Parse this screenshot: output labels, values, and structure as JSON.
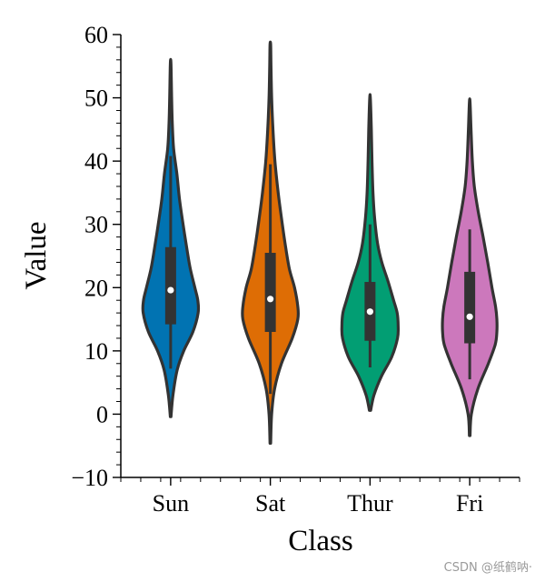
{
  "chart_data": {
    "type": "violin",
    "title": "",
    "xlabel": "Class",
    "ylabel": "Value",
    "ylim": [
      -10,
      60
    ],
    "yticks": [
      -10,
      0,
      10,
      20,
      30,
      40,
      50,
      60
    ],
    "ytick_labels": [
      "−10",
      "0",
      "10",
      "20",
      "30",
      "40",
      "50",
      "60"
    ],
    "categories": [
      "Sun",
      "Sat",
      "Thur",
      "Fri"
    ],
    "series": [
      {
        "name": "Sun",
        "color": "#0173b2",
        "median": 19.6,
        "q1": 14.2,
        "q3": 26.4,
        "whisker_low": 7.2,
        "whisker_high": 40.8,
        "kde_min": -0.4,
        "kde_max": 55.4,
        "density": [
          [
            -0.4,
            0.01
          ],
          [
            3,
            0.07
          ],
          [
            7,
            0.2
          ],
          [
            10,
            0.4
          ],
          [
            13,
            0.68
          ],
          [
            16,
            0.84
          ],
          [
            18,
            0.83
          ],
          [
            20,
            0.74
          ],
          [
            23,
            0.6
          ],
          [
            26,
            0.5
          ],
          [
            30,
            0.38
          ],
          [
            34,
            0.27
          ],
          [
            38,
            0.19
          ],
          [
            42,
            0.09
          ],
          [
            46,
            0.05
          ],
          [
            50,
            0.03
          ],
          [
            55.4,
            0.01
          ]
        ]
      },
      {
        "name": "Sat",
        "color": "#de6d05",
        "median": 18.2,
        "q1": 13.0,
        "q3": 25.5,
        "whisker_low": 3.2,
        "whisker_high": 39.5,
        "kde_min": -4.6,
        "kde_max": 58.4,
        "density": [
          [
            -4.6,
            0.01
          ],
          [
            0,
            0.04
          ],
          [
            4,
            0.13
          ],
          [
            8,
            0.34
          ],
          [
            12,
            0.67
          ],
          [
            15,
            0.84
          ],
          [
            17,
            0.84
          ],
          [
            20,
            0.74
          ],
          [
            23,
            0.58
          ],
          [
            27,
            0.45
          ],
          [
            31,
            0.34
          ],
          [
            35,
            0.24
          ],
          [
            40,
            0.14
          ],
          [
            45,
            0.08
          ],
          [
            50,
            0.04
          ],
          [
            55,
            0.02
          ],
          [
            58.4,
            0.01
          ]
        ]
      },
      {
        "name": "Thur",
        "color": "#029e73",
        "median": 16.2,
        "q1": 11.6,
        "q3": 20.9,
        "whisker_low": 7.4,
        "whisker_high": 30.0,
        "kde_min": 0.6,
        "kde_max": 49.9,
        "density": [
          [
            0.6,
            0.02
          ],
          [
            3,
            0.12
          ],
          [
            6,
            0.35
          ],
          [
            9,
            0.66
          ],
          [
            12,
            0.84
          ],
          [
            14,
            0.86
          ],
          [
            16,
            0.83
          ],
          [
            18,
            0.72
          ],
          [
            21,
            0.55
          ],
          [
            24,
            0.36
          ],
          [
            27,
            0.23
          ],
          [
            31,
            0.14
          ],
          [
            35,
            0.09
          ],
          [
            40,
            0.06
          ],
          [
            45,
            0.04
          ],
          [
            49.9,
            0.01
          ]
        ]
      },
      {
        "name": "Fri",
        "color": "#cc78bc",
        "median": 15.4,
        "q1": 11.2,
        "q3": 22.5,
        "whisker_low": 5.5,
        "whisker_high": 29.2,
        "kde_min": -3.4,
        "kde_max": 49.3,
        "density": [
          [
            -3.4,
            0.01
          ],
          [
            0,
            0.05
          ],
          [
            4,
            0.25
          ],
          [
            8,
            0.57
          ],
          [
            11,
            0.78
          ],
          [
            13,
            0.83
          ],
          [
            15,
            0.83
          ],
          [
            17,
            0.79
          ],
          [
            20,
            0.68
          ],
          [
            24,
            0.55
          ],
          [
            28,
            0.41
          ],
          [
            32,
            0.26
          ],
          [
            36,
            0.14
          ],
          [
            40,
            0.08
          ],
          [
            45,
            0.04
          ],
          [
            49.3,
            0.01
          ]
        ]
      }
    ]
  },
  "watermark": "CSDN @纸鹤呐·"
}
